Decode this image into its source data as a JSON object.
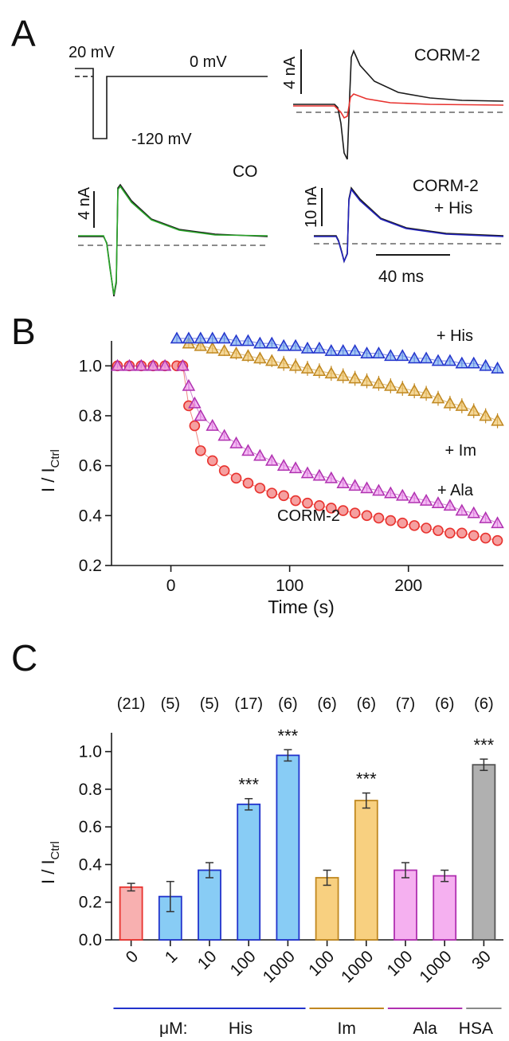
{
  "panels": {
    "a": "A",
    "b": "B",
    "c": "C"
  },
  "colors": {
    "black": "#1a1a1a",
    "ctrl_red": "#e8322e",
    "co_green": "#2aa62a",
    "his_blue": "#2222bb",
    "im_orange": "#e0a030",
    "ala_magenta": "#c040c0",
    "hsa_gray": "#8a8a8a"
  },
  "panel_a": {
    "protocol": {
      "v_hold": "20 mV",
      "v_step": "-120 mV",
      "v_test": "0 mV"
    },
    "traces": [
      {
        "name": "CORM-2",
        "scale": "4 nA",
        "color": "#e8322e"
      },
      {
        "name": "CO",
        "scale": "4 nA",
        "color": "#2aa62a"
      },
      {
        "name": "CORM-2",
        "name2": "+ His",
        "scale": "10 nA",
        "color": "#2222bb"
      }
    ],
    "time_scale": "40 ms"
  },
  "chart_data": [
    {
      "type": "scatter",
      "panel": "B",
      "xlabel": "Time (s)",
      "ylabel_main": "I / I",
      "ylabel_sub": "Ctrl",
      "xlim": [
        -50,
        280
      ],
      "ylim": [
        0.2,
        1.1
      ],
      "xticks": [
        0,
        100,
        200
      ],
      "yticks": [
        0.2,
        0.4,
        0.6,
        0.8,
        1.0
      ],
      "series": [
        {
          "name": "+ His",
          "marker": "triangle",
          "color": "#2233cc",
          "fill": "#7fb0f0",
          "x": [
            5,
            15,
            25,
            35,
            45,
            55,
            65,
            75,
            85,
            95,
            105,
            115,
            125,
            135,
            145,
            155,
            165,
            175,
            185,
            195,
            205,
            215,
            225,
            235,
            245,
            255,
            265,
            275
          ],
          "y": [
            1.11,
            1.11,
            1.11,
            1.11,
            1.11,
            1.1,
            1.1,
            1.09,
            1.09,
            1.08,
            1.08,
            1.07,
            1.07,
            1.06,
            1.06,
            1.06,
            1.05,
            1.05,
            1.04,
            1.04,
            1.03,
            1.03,
            1.02,
            1.02,
            1.01,
            1.01,
            1.0,
            0.99
          ],
          "err": [
            0.015,
            0.015,
            0.015,
            0.015,
            0.015,
            0.015,
            0.015,
            0.015,
            0.015,
            0.015,
            0.015,
            0.015,
            0.015,
            0.015,
            0.015,
            0.015,
            0.015,
            0.015,
            0.015,
            0.015,
            0.015,
            0.015,
            0.015,
            0.015,
            0.015,
            0.015,
            0.02,
            0.02
          ]
        },
        {
          "name": "+ Im",
          "marker": "triangle",
          "color": "#c08820",
          "fill": "#f0c870",
          "x": [
            15,
            25,
            35,
            45,
            55,
            65,
            75,
            85,
            95,
            105,
            115,
            125,
            135,
            145,
            155,
            165,
            175,
            185,
            195,
            205,
            215,
            225,
            235,
            245,
            255,
            265,
            275
          ],
          "y": [
            1.09,
            1.08,
            1.07,
            1.06,
            1.05,
            1.04,
            1.03,
            1.02,
            1.01,
            1.0,
            0.99,
            0.98,
            0.97,
            0.96,
            0.95,
            0.94,
            0.93,
            0.92,
            0.91,
            0.9,
            0.89,
            0.87,
            0.85,
            0.84,
            0.82,
            0.8,
            0.78
          ],
          "err": [
            0.02,
            0.02,
            0.02,
            0.02,
            0.025,
            0.025,
            0.025,
            0.025,
            0.03,
            0.03,
            0.03,
            0.03,
            0.03,
            0.03,
            0.03,
            0.03,
            0.03,
            0.03,
            0.03,
            0.03,
            0.03,
            0.03,
            0.03,
            0.03,
            0.03,
            0.03,
            0.03
          ]
        },
        {
          "name": "+ Ala",
          "marker": "triangle",
          "color": "#b030b0",
          "fill": "#f0a0f0",
          "x": [
            10,
            15,
            20,
            25,
            35,
            45,
            55,
            65,
            75,
            85,
            95,
            105,
            115,
            125,
            135,
            145,
            155,
            165,
            175,
            185,
            195,
            205,
            215,
            225,
            235,
            245,
            255,
            265,
            275
          ],
          "y": [
            1.0,
            0.92,
            0.85,
            0.8,
            0.76,
            0.72,
            0.69,
            0.66,
            0.64,
            0.62,
            0.6,
            0.59,
            0.57,
            0.56,
            0.55,
            0.53,
            0.52,
            0.51,
            0.5,
            0.49,
            0.48,
            0.47,
            0.46,
            0.45,
            0.44,
            0.42,
            0.41,
            0.39,
            0.37
          ],
          "err": [
            0.01,
            0.015,
            0.015,
            0.015,
            0.015,
            0.015,
            0.015,
            0.015,
            0.015,
            0.015,
            0.015,
            0.015,
            0.015,
            0.015,
            0.015,
            0.015,
            0.015,
            0.015,
            0.015,
            0.015,
            0.015,
            0.015,
            0.015,
            0.015,
            0.015,
            0.015,
            0.015,
            0.015,
            0.02
          ]
        },
        {
          "name": "CORM-2",
          "marker": "circle",
          "color": "#e8322e",
          "fill": "#f5a0a0",
          "x": [
            -45,
            -35,
            -25,
            -15,
            -5,
            5,
            10,
            15,
            20,
            25,
            35,
            45,
            55,
            65,
            75,
            85,
            95,
            105,
            115,
            125,
            135,
            145,
            155,
            165,
            175,
            185,
            195,
            205,
            215,
            225,
            235,
            245,
            255,
            265,
            275
          ],
          "y": [
            1.0,
            1.0,
            1.0,
            1.0,
            1.0,
            1.0,
            1.0,
            0.84,
            0.76,
            0.66,
            0.62,
            0.58,
            0.55,
            0.53,
            0.51,
            0.49,
            0.48,
            0.46,
            0.45,
            0.44,
            0.43,
            0.42,
            0.41,
            0.4,
            0.39,
            0.38,
            0.37,
            0.36,
            0.35,
            0.34,
            0.33,
            0.33,
            0.32,
            0.31,
            0.3
          ],
          "err": [
            0.01,
            0.01,
            0.01,
            0.01,
            0.01,
            0.01,
            0.01,
            0.015,
            0.015,
            0.015,
            0.015,
            0.015,
            0.015,
            0.015,
            0.015,
            0.015,
            0.015,
            0.015,
            0.015,
            0.015,
            0.015,
            0.015,
            0.015,
            0.015,
            0.015,
            0.015,
            0.015,
            0.015,
            0.015,
            0.015,
            0.015,
            0.015,
            0.015,
            0.015,
            0.015
          ]
        },
        {
          "name": "Ctrl",
          "marker": "triangle",
          "color": "#b030b0",
          "fill": "#f0a0f0",
          "x": [
            -45,
            -35,
            -25,
            -15,
            -5
          ],
          "y": [
            1.0,
            1.0,
            1.0,
            1.0,
            1.0
          ],
          "err": [
            0.01,
            0.01,
            0.01,
            0.01,
            0.01
          ]
        }
      ]
    },
    {
      "type": "bar",
      "panel": "C",
      "ylabel_main": "I / I",
      "ylabel_sub": "Ctrl",
      "ylim": [
        0.0,
        1.1
      ],
      "yticks": [
        0.0,
        0.2,
        0.4,
        0.6,
        0.8,
        1.0
      ],
      "categories": [
        "0",
        "1",
        "10",
        "100",
        "1000",
        "100",
        "1000",
        "100",
        "1000",
        "30"
      ],
      "values": [
        0.28,
        0.23,
        0.37,
        0.72,
        0.98,
        0.33,
        0.74,
        0.37,
        0.34,
        0.93
      ],
      "errors": [
        0.02,
        0.08,
        0.04,
        0.03,
        0.03,
        0.04,
        0.04,
        0.04,
        0.03,
        0.03
      ],
      "n": [
        "(21)",
        "(5)",
        "(5)",
        "(17)",
        "(6)",
        "(6)",
        "(6)",
        "(7)",
        "(6)",
        "(6)"
      ],
      "significance": [
        "",
        "",
        "",
        "***",
        "***",
        "",
        "***",
        "",
        "",
        "***"
      ],
      "bar_fill": [
        "#f8b0b0",
        "#88ccf5",
        "#88ccf5",
        "#88ccf5",
        "#88ccf5",
        "#f8d080",
        "#f8d080",
        "#f5b0f0",
        "#f5b0f0",
        "#b0b0b0"
      ],
      "bar_edge": [
        "#e8322e",
        "#2233cc",
        "#2233cc",
        "#2233cc",
        "#2233cc",
        "#c08820",
        "#c08820",
        "#b030b0",
        "#b030b0",
        "#555555"
      ],
      "groups": [
        {
          "label": "His",
          "prefix": "μM:",
          "color": "#2233cc",
          "from": 0,
          "to": 4
        },
        {
          "label": "Im",
          "color": "#c08820",
          "from": 5,
          "to": 6
        },
        {
          "label": "Ala",
          "color": "#b030b0",
          "from": 7,
          "to": 8
        },
        {
          "label": "HSA",
          "color": "#8a8a8a",
          "from": 9,
          "to": 9
        }
      ]
    }
  ]
}
